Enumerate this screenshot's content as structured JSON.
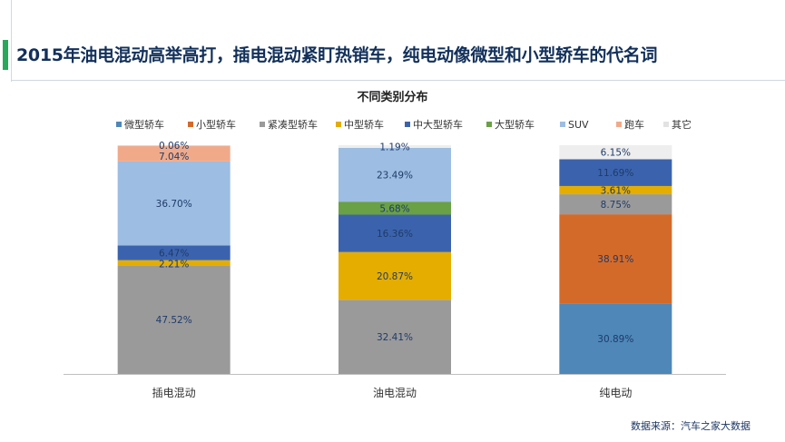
{
  "header": {
    "title": "2015年油电混动高举高打，插电混动紧盯热销车，纯电动像微型和小型轿车的代名词"
  },
  "footer": {
    "source": "数据来源：汽车之家大数据"
  },
  "chart_data": {
    "type": "bar",
    "stacked": true,
    "title": "不同类别分布",
    "categories": [
      "插电混动",
      "油电混动",
      "纯电动"
    ],
    "ylim": [
      0,
      100
    ],
    "grid": false,
    "legend_position": "top",
    "series": [
      {
        "name": "微型轿车",
        "color": "#4e87b8",
        "values": [
          0,
          0,
          30.89
        ],
        "labels": [
          "",
          "",
          "30.89%"
        ]
      },
      {
        "name": "小型轿车",
        "color": "#d46a29",
        "values": [
          0,
          0,
          38.91
        ],
        "labels": [
          "",
          "",
          "38.91%"
        ]
      },
      {
        "name": "紧凑型轿车",
        "color": "#9a9a9a",
        "values": [
          47.52,
          32.41,
          8.75
        ],
        "labels": [
          "47.52%",
          "32.41%",
          "8.75%"
        ]
      },
      {
        "name": "中型轿车",
        "color": "#e4ad00",
        "values": [
          2.21,
          20.87,
          3.61
        ],
        "labels": [
          "2.21%",
          "20.87%",
          "3.61%"
        ]
      },
      {
        "name": "中大型轿车",
        "color": "#3b63ad",
        "values": [
          6.47,
          16.36,
          11.69
        ],
        "labels": [
          "6.47%",
          "16.36%",
          "11.69%"
        ]
      },
      {
        "name": "大型轿车",
        "color": "#6aa046",
        "values": [
          0,
          5.68,
          0
        ],
        "labels": [
          "",
          "5.68%",
          ""
        ]
      },
      {
        "name": "SUV",
        "color": "#9dbde2",
        "values": [
          36.7,
          23.49,
          0
        ],
        "labels": [
          "36.70%",
          "23.49%",
          ""
        ]
      },
      {
        "name": "跑车",
        "color": "#f0aa8a",
        "values": [
          7.04,
          0,
          0
        ],
        "labels": [
          "7.04%",
          "",
          ""
        ]
      },
      {
        "name": "其它",
        "color": "#eeeeee",
        "values": [
          0.06,
          1.19,
          6.15
        ],
        "labels": [
          "0.06%",
          "1.19%",
          "6.15%"
        ]
      }
    ]
  }
}
